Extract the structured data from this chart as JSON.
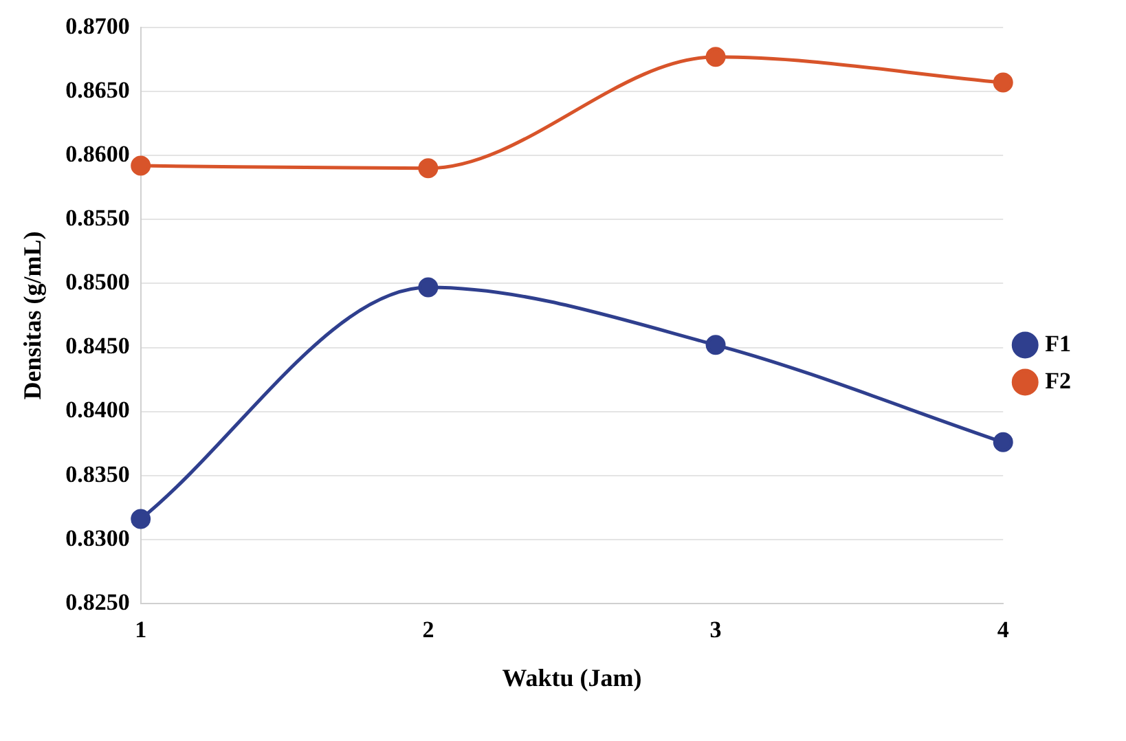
{
  "chart_data": {
    "type": "line",
    "xlabel": "Waktu (Jam)",
    "ylabel": "Densitas (g/mL)",
    "categories": [
      "1",
      "2",
      "3",
      "4"
    ],
    "series": [
      {
        "name": "F1",
        "color": "#2f3f8e",
        "values": [
          0.8316,
          0.8497,
          0.8452,
          0.8376
        ]
      },
      {
        "name": "F2",
        "color": "#d8542a",
        "values": [
          0.8592,
          0.859,
          0.8677,
          0.8657
        ]
      }
    ],
    "ylim": [
      0.825,
      0.87
    ],
    "yticks": [
      {
        "value": 0.825,
        "label": "0.8250"
      },
      {
        "value": 0.83,
        "label": "0.8300"
      },
      {
        "value": 0.835,
        "label": "0.8350"
      },
      {
        "value": 0.84,
        "label": "0.8400"
      },
      {
        "value": 0.845,
        "label": "0.8450"
      },
      {
        "value": 0.85,
        "label": "0.8500"
      },
      {
        "value": 0.855,
        "label": "0.8550"
      },
      {
        "value": 0.86,
        "label": "0.8600"
      },
      {
        "value": 0.865,
        "label": "0.8650"
      },
      {
        "value": 0.87,
        "label": "0.8700"
      }
    ],
    "grid": "y",
    "legend": "right",
    "marker": "circle",
    "line_style": "solid"
  }
}
